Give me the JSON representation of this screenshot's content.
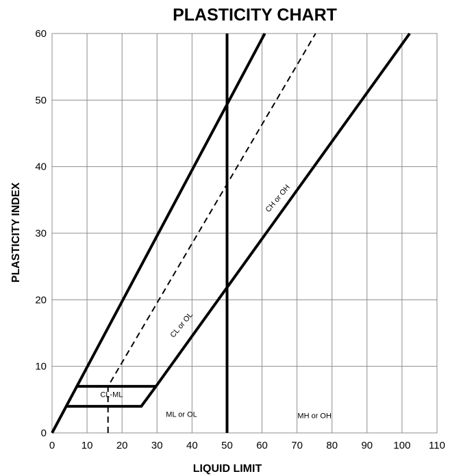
{
  "chart_data": {
    "type": "line",
    "title": "PLASTICITY CHART",
    "xlabel": "LIQUID LIMIT",
    "ylabel": "PLASTICITY INDEX",
    "xlim": [
      0,
      110
    ],
    "ylim": [
      0,
      60
    ],
    "x_ticks": [
      0,
      10,
      20,
      30,
      40,
      50,
      60,
      70,
      80,
      90,
      100,
      110
    ],
    "y_ticks": [
      0,
      10,
      20,
      30,
      40,
      50,
      60
    ],
    "grid": true,
    "legend": "none",
    "series": [
      {
        "style": "solid-thick",
        "points": [
          [
            0,
            0
          ],
          [
            60.8,
            60
          ]
        ]
      },
      {
        "style": "solid-thick",
        "points": [
          [
            50,
            0
          ],
          [
            50,
            60
          ]
        ]
      },
      {
        "style": "solid-thick",
        "points": [
          [
            4,
            4
          ],
          [
            25.5,
            4
          ],
          [
            29.7,
            7
          ]
        ]
      },
      {
        "style": "solid-thick",
        "points": [
          [
            7,
            7
          ],
          [
            29.7,
            7
          ]
        ]
      },
      {
        "style": "solid-thick",
        "points": [
          [
            29.7,
            7
          ],
          [
            102.2,
            60
          ]
        ]
      },
      {
        "style": "dashed",
        "points": [
          [
            16,
            0
          ],
          [
            16,
            7
          ],
          [
            75.3,
            60
          ]
        ]
      }
    ],
    "annotations": [
      {
        "text": "CL-ML",
        "x": 17,
        "y": 5.4
      },
      {
        "text": "ML or OL",
        "x": 37,
        "y": 2.4
      },
      {
        "text": "MH or OH",
        "x": 75,
        "y": 2.2
      },
      {
        "text": "CL or OL",
        "x": 37.5,
        "y": 16,
        "angle": -50
      },
      {
        "text": "CH or OH",
        "x": 65,
        "y": 35,
        "angle": -50
      }
    ]
  }
}
